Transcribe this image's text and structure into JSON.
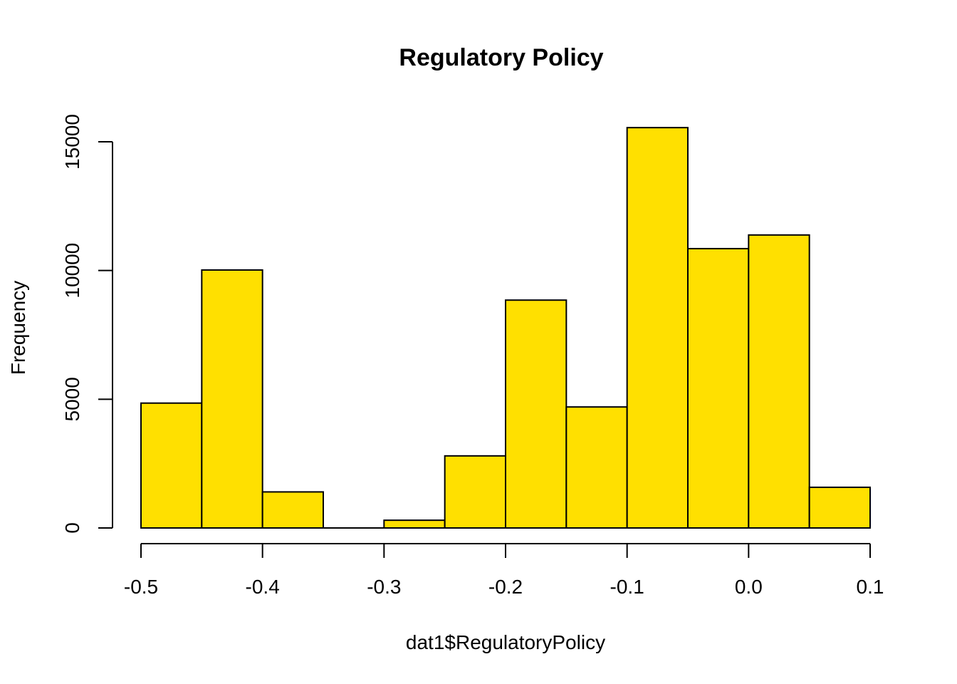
{
  "chart_data": {
    "type": "bar",
    "title": "Regulatory Policy",
    "xlabel": "dat1$RegulatoryPolicy",
    "ylabel": "Frequency",
    "bar_color": "#FFE000",
    "edge_color": "#000000",
    "bins": [
      {
        "x0": -0.5,
        "x1": -0.45,
        "count": 4850
      },
      {
        "x0": -0.45,
        "x1": -0.4,
        "count": 10020
      },
      {
        "x0": -0.4,
        "x1": -0.35,
        "count": 1400
      },
      {
        "x0": -0.35,
        "x1": -0.3,
        "count": 0
      },
      {
        "x0": -0.3,
        "x1": -0.25,
        "count": 300
      },
      {
        "x0": -0.25,
        "x1": -0.2,
        "count": 2800
      },
      {
        "x0": -0.2,
        "x1": -0.15,
        "count": 8850
      },
      {
        "x0": -0.15,
        "x1": -0.1,
        "count": 4700
      },
      {
        "x0": -0.1,
        "x1": -0.05,
        "count": 15550
      },
      {
        "x0": -0.05,
        "x1": 0.0,
        "count": 10850
      },
      {
        "x0": 0.0,
        "x1": 0.05,
        "count": 11380
      },
      {
        "x0": 0.05,
        "x1": 0.1,
        "count": 1580
      }
    ],
    "xlim": [
      -0.5,
      0.1
    ],
    "x_ticks": [
      -0.5,
      -0.4,
      -0.3,
      -0.2,
      -0.1,
      0.0,
      0.1
    ],
    "x_tick_labels": [
      "-0.5",
      "-0.4",
      "-0.3",
      "-0.2",
      "-0.1",
      "0.0",
      "0.1"
    ],
    "y_ticks": [
      0,
      5000,
      10000,
      15000
    ],
    "y_tick_labels": [
      "0",
      "5000",
      "10000",
      "15000"
    ],
    "grid": false,
    "legend": "none"
  }
}
